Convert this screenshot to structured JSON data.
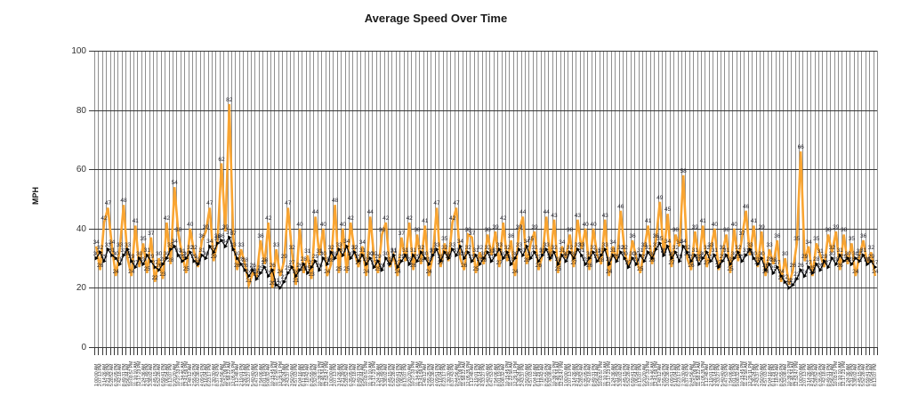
{
  "title": "Average Speed Over Time",
  "y_axis": {
    "label": "MPH",
    "ticks": [
      0,
      20,
      40,
      60,
      80,
      100
    ]
  },
  "x_axis": {
    "labels_illegible": true,
    "note": "dense rotated timestamp labels along bottom, unreadable at screenshot resolution"
  },
  "colors": {
    "speed_line": "#F9A532",
    "average_line": "#000000",
    "grid_h": "#383838",
    "grid_v": "#8F8F8F",
    "label_text": "#20202A"
  },
  "chart_data": {
    "type": "line",
    "title": "Average Speed Over Time",
    "xlabel": "",
    "ylabel": "MPH",
    "ylim": [
      0,
      100
    ],
    "grid": "both",
    "legend_position": "none",
    "series": [
      {
        "name": "speed",
        "type": "line",
        "color": "#F9A532",
        "values": [
          34,
          26,
          42,
          47,
          34,
          24,
          33,
          48,
          30,
          24,
          41,
          27,
          35,
          25,
          37,
          22,
          30,
          23,
          42,
          28,
          54,
          38,
          31,
          25,
          40,
          32,
          27,
          36,
          39,
          47,
          29,
          36,
          62,
          39,
          82,
          37,
          26,
          33,
          28,
          21,
          25,
          24,
          36,
          28,
          42,
          20,
          33,
          24,
          29,
          47,
          32,
          21,
          40,
          25,
          31,
          23,
          44,
          31,
          40,
          24,
          28,
          48,
          25,
          40,
          25,
          42,
          32,
          27,
          34,
          24,
          44,
          30,
          25,
          38,
          42,
          27,
          31,
          24,
          37,
          29,
          42,
          26,
          38,
          28,
          41,
          24,
          31,
          47,
          27,
          35,
          29,
          42,
          47,
          30,
          26,
          38,
          37,
          25,
          32,
          28,
          38,
          31,
          39,
          27,
          42,
          29,
          36,
          24,
          39,
          44,
          28,
          35,
          39,
          26,
          31,
          44,
          29,
          43,
          25,
          34,
          30,
          38,
          27,
          43,
          33,
          40,
          26,
          40,
          31,
          28,
          43,
          24,
          34,
          29,
          46,
          32,
          27,
          36,
          30,
          25,
          33,
          41,
          28,
          36,
          49,
          31,
          45,
          27,
          38,
          34,
          58,
          30,
          26,
          39,
          29,
          41,
          27,
          33,
          40,
          26,
          32,
          38,
          25,
          40,
          29,
          37,
          46,
          31,
          41,
          27,
          39,
          24,
          33,
          28,
          36,
          22,
          30,
          21,
          26,
          35,
          66,
          29,
          34,
          24,
          35,
          31,
          27,
          38,
          32,
          39,
          26,
          38,
          28,
          35,
          24,
          31,
          36,
          28,
          32,
          24
        ]
      },
      {
        "name": "average",
        "type": "line",
        "color": "#000000",
        "values": [
          30,
          32,
          29,
          33,
          31,
          30,
          28,
          31,
          33,
          29,
          27,
          30,
          28,
          31,
          29,
          27,
          26,
          28,
          30,
          33,
          34,
          31,
          29,
          30,
          32,
          29,
          28,
          31,
          30,
          34,
          32,
          35,
          36,
          34,
          37,
          33,
          30,
          28,
          26,
          24,
          26,
          23,
          25,
          27,
          24,
          26,
          21,
          20,
          22,
          25,
          27,
          24,
          26,
          28,
          25,
          27,
          29,
          26,
          30,
          28,
          32,
          30,
          33,
          31,
          34,
          30,
          32,
          29,
          31,
          28,
          30,
          27,
          29,
          26,
          30,
          28,
          31,
          27,
          29,
          31,
          28,
          31,
          29,
          32,
          30,
          28,
          31,
          33,
          29,
          32,
          30,
          33,
          31,
          34,
          30,
          32,
          29,
          31,
          28,
          30,
          32,
          29,
          31,
          33,
          30,
          32,
          28,
          30,
          33,
          31,
          34,
          30,
          32,
          29,
          31,
          33,
          30,
          32,
          28,
          31,
          29,
          32,
          30,
          33,
          31,
          28,
          30,
          32,
          29,
          31,
          33,
          28,
          31,
          29,
          32,
          30,
          27,
          30,
          28,
          31,
          29,
          32,
          30,
          33,
          35,
          31,
          34,
          30,
          32,
          29,
          34,
          32,
          29,
          31,
          28,
          30,
          32,
          29,
          31,
          27,
          29,
          31,
          28,
          30,
          32,
          29,
          31,
          33,
          30,
          28,
          30,
          26,
          28,
          25,
          27,
          24,
          22,
          20,
          21,
          23,
          26,
          24,
          27,
          25,
          28,
          26,
          29,
          27,
          30,
          28,
          31,
          29,
          30,
          28,
          30,
          29,
          31,
          28,
          29,
          27
        ]
      }
    ]
  }
}
